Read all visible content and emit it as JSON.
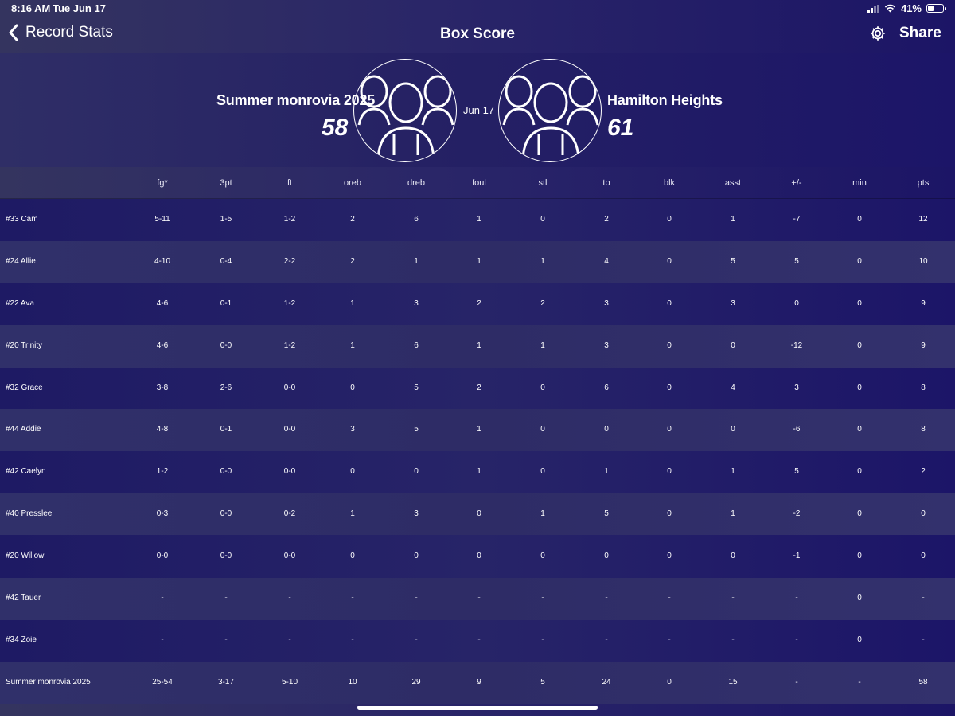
{
  "status_bar": {
    "time": "8:16 AM",
    "date": "Tue Jun 17",
    "battery": "41%"
  },
  "nav": {
    "back_label": "Record Stats",
    "title": "Box Score",
    "share_label": "Share"
  },
  "game": {
    "date": "Jun 17",
    "home": {
      "name": "Summer monrovia 2025",
      "score": "58"
    },
    "away": {
      "name": "Hamilton Heights",
      "score": "61"
    }
  },
  "table": {
    "columns": [
      "fg*",
      "3pt",
      "ft",
      "oreb",
      "dreb",
      "foul",
      "stl",
      "to",
      "blk",
      "asst",
      "+/-",
      "min",
      "pts"
    ],
    "rows": [
      {
        "name": "#33 Cam",
        "values": [
          "5-11",
          "1-5",
          "1-2",
          "2",
          "6",
          "1",
          "0",
          "2",
          "0",
          "1",
          "-7",
          "0",
          "12"
        ]
      },
      {
        "name": "#24 Allie",
        "values": [
          "4-10",
          "0-4",
          "2-2",
          "2",
          "1",
          "1",
          "1",
          "4",
          "0",
          "5",
          "5",
          "0",
          "10"
        ]
      },
      {
        "name": "#22 Ava",
        "values": [
          "4-6",
          "0-1",
          "1-2",
          "1",
          "3",
          "2",
          "2",
          "3",
          "0",
          "3",
          "0",
          "0",
          "9"
        ]
      },
      {
        "name": "#20 Trinity",
        "values": [
          "4-6",
          "0-0",
          "1-2",
          "1",
          "6",
          "1",
          "1",
          "3",
          "0",
          "0",
          "-12",
          "0",
          "9"
        ]
      },
      {
        "name": "#32 Grace",
        "values": [
          "3-8",
          "2-6",
          "0-0",
          "0",
          "5",
          "2",
          "0",
          "6",
          "0",
          "4",
          "3",
          "0",
          "8"
        ]
      },
      {
        "name": "#44 Addie",
        "values": [
          "4-8",
          "0-1",
          "0-0",
          "3",
          "5",
          "1",
          "0",
          "0",
          "0",
          "0",
          "-6",
          "0",
          "8"
        ]
      },
      {
        "name": "#42 Caelyn",
        "values": [
          "1-2",
          "0-0",
          "0-0",
          "0",
          "0",
          "1",
          "0",
          "1",
          "0",
          "1",
          "5",
          "0",
          "2"
        ]
      },
      {
        "name": "#40 Presslee",
        "values": [
          "0-3",
          "0-0",
          "0-2",
          "1",
          "3",
          "0",
          "1",
          "5",
          "0",
          "1",
          "-2",
          "0",
          "0"
        ]
      },
      {
        "name": "#20 Willow",
        "values": [
          "0-0",
          "0-0",
          "0-0",
          "0",
          "0",
          "0",
          "0",
          "0",
          "0",
          "0",
          "-1",
          "0",
          "0"
        ]
      },
      {
        "name": "#42 Tauer",
        "values": [
          "-",
          "-",
          "-",
          "-",
          "-",
          "-",
          "-",
          "-",
          "-",
          "-",
          "-",
          "0",
          "-"
        ]
      },
      {
        "name": "#34 Zoie",
        "values": [
          "-",
          "-",
          "-",
          "-",
          "-",
          "-",
          "-",
          "-",
          "-",
          "-",
          "-",
          "0",
          "-"
        ]
      },
      {
        "name": "Summer monrovia 2025",
        "values": [
          "25-54",
          "3-17",
          "5-10",
          "10",
          "29",
          "9",
          "5",
          "24",
          "0",
          "15",
          "-",
          "-",
          "58"
        ]
      }
    ]
  },
  "icons": {
    "back": "chevron-left-icon",
    "settings": "gear-icon",
    "team_avatar": "team-group-icon",
    "wifi": "wifi-icon",
    "battery": "battery-icon"
  }
}
